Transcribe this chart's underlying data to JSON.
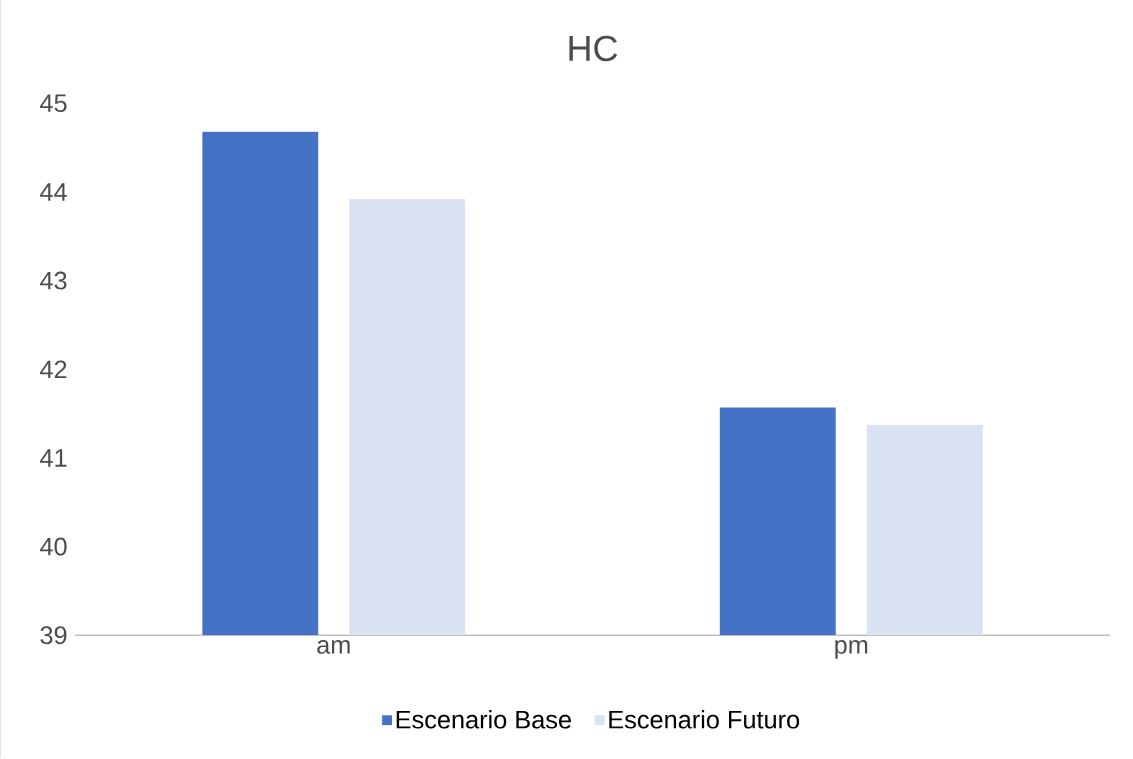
{
  "chart_data": {
    "type": "bar",
    "title": "HC",
    "categories": [
      "am",
      "pm"
    ],
    "series": [
      {
        "name": "Escenario Base",
        "color": "#4472c4",
        "values": [
          44.68,
          41.57
        ]
      },
      {
        "name": "Escenario Futuro",
        "color": "#dae3f3",
        "values": [
          43.92,
          41.37
        ]
      }
    ],
    "ylim": [
      39,
      45
    ],
    "yticks": [
      39,
      40,
      41,
      42,
      43,
      44,
      45
    ],
    "grid": false,
    "legend": "bottom"
  }
}
